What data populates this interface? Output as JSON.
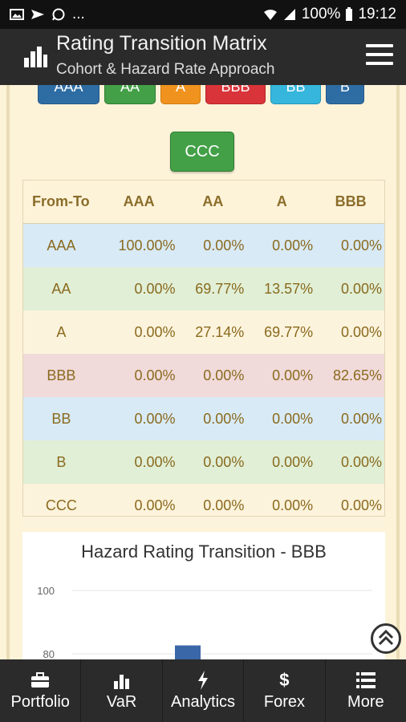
{
  "status_bar": {
    "battery": "100%",
    "time": "19:12",
    "more": "..."
  },
  "app_bar": {
    "title": "Rating Transition Matrix",
    "subtitle": "Cohort & Hazard Rate Approach"
  },
  "rating_buttons": [
    {
      "label": "AAA",
      "color": "#2e6da4"
    },
    {
      "label": "AA",
      "color": "#43a047"
    },
    {
      "label": "A",
      "color": "#f0931e"
    },
    {
      "label": "BBB",
      "color": "#d9343a"
    },
    {
      "label": "BB",
      "color": "#36b6dc"
    },
    {
      "label": "B",
      "color": "#2e6da4"
    }
  ],
  "ccc_button": {
    "label": "CCC",
    "color": "#43a047"
  },
  "matrix": {
    "headers": [
      "From-To",
      "AAA",
      "AA",
      "A",
      "BBB"
    ],
    "rows": [
      {
        "label": "AAA",
        "values": [
          "100.00%",
          "0.00%",
          "0.00%",
          "0.00%"
        ]
      },
      {
        "label": "AA",
        "values": [
          "0.00%",
          "69.77%",
          "13.57%",
          "0.00%"
        ]
      },
      {
        "label": "A",
        "values": [
          "0.00%",
          "27.14%",
          "69.77%",
          "0.00%"
        ]
      },
      {
        "label": "BBB",
        "values": [
          "0.00%",
          "0.00%",
          "0.00%",
          "82.65%"
        ]
      },
      {
        "label": "BB",
        "values": [
          "0.00%",
          "0.00%",
          "0.00%",
          "0.00%"
        ]
      },
      {
        "label": "B",
        "values": [
          "0.00%",
          "0.00%",
          "0.00%",
          "0.00%"
        ]
      },
      {
        "label": "CCC",
        "values": [
          "0.00%",
          "0.00%",
          "0.00%",
          "0.00%"
        ]
      }
    ]
  },
  "chart_data": {
    "type": "bar",
    "title": "Hazard Rating Transition - BBB",
    "y_ticks": [
      "100",
      "80"
    ],
    "values": [
      82.65
    ],
    "bar_color": "#3a67a8",
    "grid": true
  },
  "bottom_nav": [
    {
      "label": "Portfolio",
      "icon": "briefcase-icon"
    },
    {
      "label": "VaR",
      "icon": "bar-chart-icon"
    },
    {
      "label": "Analytics",
      "icon": "lightning-icon"
    },
    {
      "label": "Forex",
      "icon": "dollar-icon"
    },
    {
      "label": "More",
      "icon": "list-icon"
    }
  ]
}
